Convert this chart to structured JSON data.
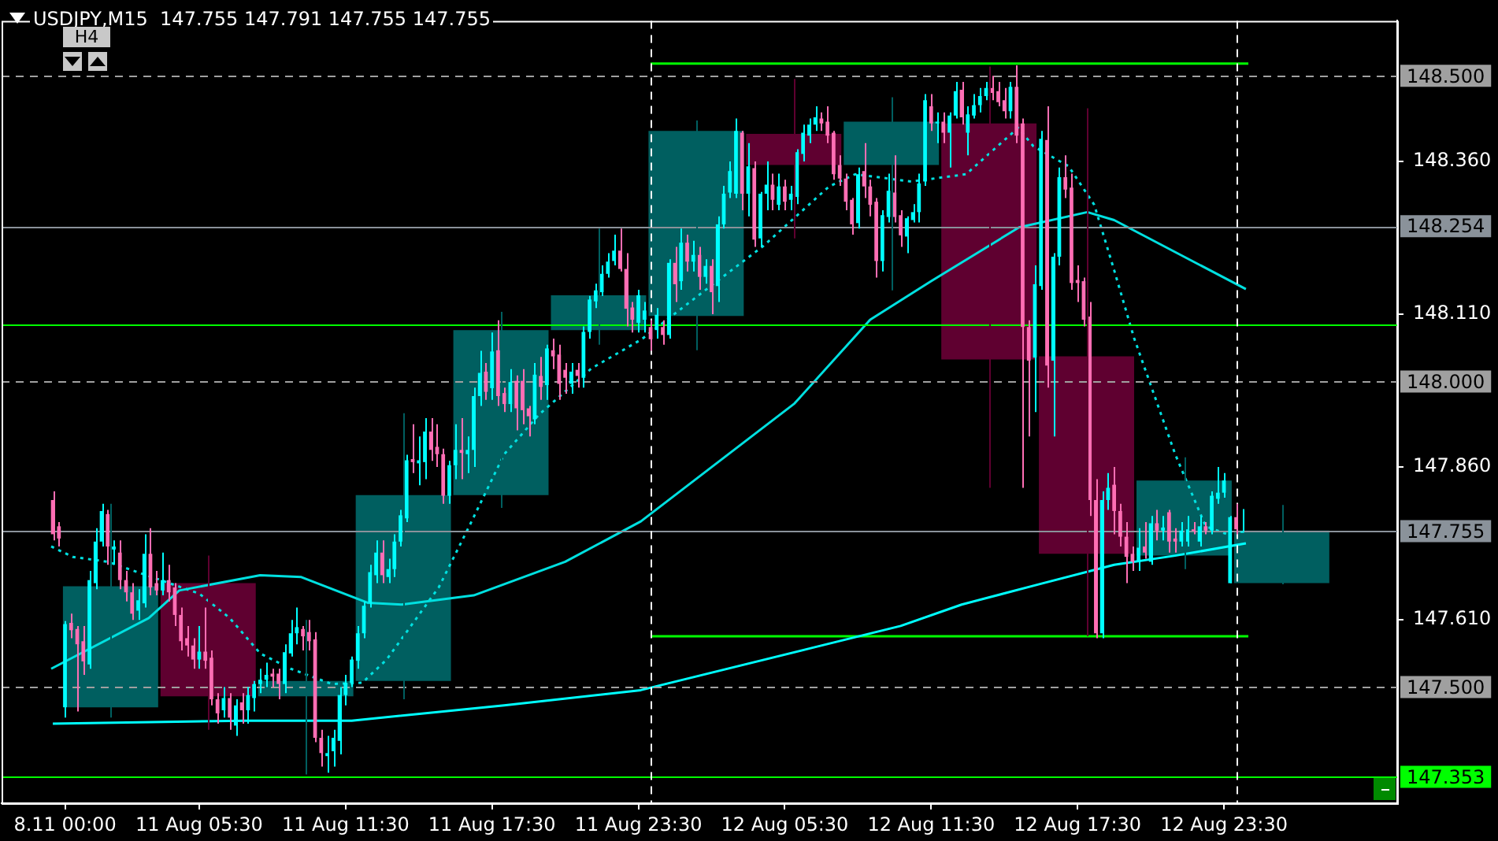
{
  "chart_data": {
    "type": "candlestick",
    "title": "USDJPY,M15  147.755 147.791 147.755 147.755",
    "annotations": [
      "H4"
    ],
    "xlim": [
      "--08-10T21:24",
      "--08-13T06:36"
    ],
    "ylim": [
      147.31,
      148.59
    ],
    "xticks": [
      {
        "value": "--08-11T00:00",
        "label": "8.11 00:00"
      },
      {
        "value": "--08-11T05:30",
        "label": "11 Aug 05:30"
      },
      {
        "value": "--08-11T11:30",
        "label": "11 Aug 11:30"
      },
      {
        "value": "--08-11T17:30",
        "label": "11 Aug 17:30"
      },
      {
        "value": "--08-11T23:30",
        "label": "11 Aug 23:30"
      },
      {
        "value": "--08-12T05:30",
        "label": "12 Aug 05:30"
      },
      {
        "value": "--08-12T11:30",
        "label": "12 Aug 11:30"
      },
      {
        "value": "--08-12T17:30",
        "label": "12 Aug 17:30"
      },
      {
        "value": "--08-12T23:30",
        "label": "12 Aug 23:30"
      }
    ],
    "yticks": [
      {
        "value": 147.61,
        "label": "147.610"
      },
      {
        "value": 147.86,
        "label": "147.860"
      },
      {
        "value": 148.11,
        "label": "148.110"
      },
      {
        "value": 148.36,
        "label": "148.360"
      }
    ],
    "ref_lines": [
      {
        "axis": "y",
        "value": 148.5,
        "label": "148.500",
        "color": "#a0a0a0",
        "line_style": "dashed"
      },
      {
        "axis": "y",
        "value": 148.254,
        "label": "148.254",
        "color": "#8a929a"
      },
      {
        "axis": "y",
        "value": 148.0,
        "label": "148.000",
        "color": "#a0a0a0",
        "line_style": "dashed"
      },
      {
        "axis": "y",
        "value": 147.755,
        "label": "147.755",
        "color": "#8a929a"
      },
      {
        "axis": "y",
        "value": 147.5,
        "label": "147.500",
        "color": "#a0a0a0",
        "line_style": "dashed"
      },
      {
        "axis": "y",
        "value": 147.353,
        "label": "147.353",
        "color": "#00ff00"
      },
      {
        "axis": "y",
        "value": 148.094,
        "color": "#00ff00"
      },
      {
        "axis": "x",
        "value": "--08-12T00:00",
        "color": "#ffffff",
        "line_style": "dashed"
      },
      {
        "axis": "x",
        "value": "--08-13T00:00",
        "color": "#ffffff",
        "line_style": "dashed"
      }
    ],
    "series": [
      {
        "color": "#005f60",
        "x": [
          "--08-11T01:52",
          "--08-11T09:52",
          "--08-11T13:52",
          "--08-11T17:52",
          "--08-11T21:52",
          "--08-12T01:52",
          "--08-12T09:52",
          "--08-12T21:52",
          "--08-13T01:52"
        ],
        "ohlc": [
          [
            147.467,
            147.8,
            147.45,
            147.665
          ],
          [
            147.485,
            147.61,
            147.357,
            147.51
          ],
          [
            147.51,
            147.948,
            147.48,
            147.814
          ],
          [
            147.814,
            148.114,
            147.793,
            148.084
          ],
          [
            148.084,
            148.25,
            148.06,
            148.141
          ],
          [
            148.107,
            148.427,
            148.051,
            148.41
          ],
          [
            148.354,
            148.465,
            148.149,
            148.425
          ],
          [
            147.715,
            147.876,
            147.693,
            147.838
          ],
          [
            147.67,
            147.798,
            147.668,
            147.756
          ]
        ]
      },
      {
        "color": "#5f0030",
        "x": [
          "--08-11T05:52",
          "--08-12T05:52",
          "--08-12T13:52",
          "--08-12T17:52"
        ],
        "ohlc": [
          [
            147.67,
            147.715,
            147.43,
            147.485
          ],
          [
            148.405,
            148.495,
            148.234,
            148.354
          ],
          [
            148.422,
            148.515,
            147.826,
            148.036
          ],
          [
            148.041,
            148.447,
            147.583,
            147.718
          ]
        ]
      },
      {
        "color": "#00ffff",
        "x": [
          "--08-11T00:00",
          "--08-11T01:00",
          "--08-11T01:15",
          "--08-11T01:30",
          "--08-11T02:00",
          "--08-11T03:00",
          "--08-11T03:15",
          "--08-11T04:00",
          "--08-11T05:30",
          "--08-11T06:30",
          "--08-11T07:00",
          "--08-11T07:30",
          "--08-11T07:45",
          "--08-11T08:00",
          "--08-11T08:15",
          "--08-11T09:00",
          "--08-11T09:15",
          "--08-11T09:30",
          "--08-11T10:45",
          "--08-11T11:00",
          "--08-11T11:15",
          "--08-11T11:30",
          "--08-11T11:45",
          "--08-11T12:00",
          "--08-11T12:15",
          "--08-11T12:30",
          "--08-11T12:45",
          "--08-11T13:15",
          "--08-11T13:30",
          "--08-11T13:45",
          "--08-11T14:00",
          "--08-11T14:30",
          "--08-11T14:45",
          "--08-11T15:45",
          "--08-11T16:00",
          "--08-11T16:30",
          "--08-11T16:45",
          "--08-11T17:00",
          "--08-11T17:30",
          "--08-11T18:15",
          "--08-11T19:15",
          "--08-11T19:45",
          "--08-11T20:45",
          "--08-11T21:15",
          "--08-11T21:30",
          "--08-11T21:45",
          "--08-11T22:00",
          "--08-11T22:15",
          "--08-11T22:30",
          "--08-11T23:30",
          "--08-11T23:45",
          "--08-12T00:15",
          "--08-12T00:45",
          "--08-12T01:15",
          "--08-12T01:45",
          "--08-12T02:15",
          "--08-12T02:45",
          "--08-12T03:00",
          "--08-12T03:15",
          "--08-12T03:30",
          "--08-12T04:00",
          "--08-12T04:30",
          "--08-12T04:45",
          "--08-12T05:15",
          "--08-12T05:45",
          "--08-12T06:00",
          "--08-12T06:15",
          "--08-12T06:30",
          "--08-12T06:45",
          "--08-12T08:30",
          "--08-12T09:30",
          "--08-12T09:45",
          "--08-12T10:30",
          "--08-12T10:45",
          "--08-12T11:00",
          "--08-12T11:15",
          "--08-12T11:45",
          "--08-12T12:15",
          "--08-12T12:30",
          "--08-12T13:00",
          "--08-12T13:15",
          "--08-12T13:30",
          "--08-12T13:45",
          "--08-12T14:45",
          "--08-12T15:45",
          "--08-12T16:00",
          "--08-12T16:30",
          "--08-12T16:45",
          "--08-12T18:30",
          "--08-12T18:45",
          "--08-12T20:00",
          "--08-12T20:30",
          "--08-12T21:00",
          "--08-12T21:45",
          "--08-12T22:00",
          "--08-12T22:30",
          "--08-12T23:00",
          "--08-12T23:15",
          "--08-12T23:30",
          "--08-12T23:45",
          "--08-13T00:15"
        ],
        "ohlc": [
          [
            147.467,
            147.608,
            147.45,
            147.603
          ],
          [
            147.537,
            147.69,
            147.53,
            147.675
          ],
          [
            147.67,
            147.76,
            147.66,
            147.738
          ],
          [
            147.738,
            147.8,
            147.73,
            147.788
          ],
          [
            147.725,
            147.74,
            147.7,
            147.73
          ],
          [
            147.625,
            147.66,
            147.61,
            147.642
          ],
          [
            147.637,
            147.75,
            147.63,
            147.718
          ],
          [
            147.658,
            147.72,
            147.65,
            147.675
          ],
          [
            147.545,
            147.6,
            147.53,
            147.558
          ],
          [
            147.462,
            147.5,
            147.45,
            147.482
          ],
          [
            147.437,
            147.48,
            147.42,
            147.47
          ],
          [
            147.462,
            147.5,
            147.44,
            147.487
          ],
          [
            147.482,
            147.51,
            147.46,
            147.505
          ],
          [
            147.505,
            147.53,
            147.49,
            147.512
          ],
          [
            147.512,
            147.54,
            147.5,
            147.52
          ],
          [
            147.505,
            147.57,
            147.49,
            147.557
          ],
          [
            147.555,
            147.61,
            147.55,
            147.588
          ],
          [
            147.588,
            147.63,
            147.57,
            147.598
          ],
          [
            147.387,
            147.42,
            147.36,
            147.392
          ],
          [
            147.395,
            147.43,
            147.37,
            147.417
          ],
          [
            147.412,
            147.5,
            147.39,
            147.487
          ],
          [
            147.487,
            147.52,
            147.47,
            147.507
          ],
          [
            147.507,
            147.55,
            147.5,
            147.545
          ],
          [
            147.543,
            147.6,
            147.53,
            147.588
          ],
          [
            147.588,
            147.64,
            147.58,
            147.633
          ],
          [
            147.638,
            147.7,
            147.63,
            147.688
          ],
          [
            147.683,
            147.74,
            147.67,
            147.72
          ],
          [
            147.68,
            147.71,
            147.67,
            147.693
          ],
          [
            147.693,
            147.75,
            147.68,
            147.738
          ],
          [
            147.738,
            147.79,
            147.73,
            147.781
          ],
          [
            147.776,
            147.88,
            147.77,
            147.871
          ],
          [
            147.866,
            147.91,
            147.83,
            147.871
          ],
          [
            147.868,
            147.94,
            147.84,
            147.918
          ],
          [
            147.813,
            147.87,
            147.8,
            147.863
          ],
          [
            147.863,
            147.93,
            147.84,
            147.888
          ],
          [
            147.881,
            147.91,
            147.85,
            147.888
          ],
          [
            147.888,
            147.99,
            147.86,
            147.976
          ],
          [
            147.976,
            148.05,
            147.96,
            148.014
          ],
          [
            147.989,
            148.08,
            147.97,
            148.049
          ],
          [
            147.963,
            148.02,
            147.95,
            147.999
          ],
          [
            147.938,
            148.03,
            147.93,
            148.011
          ],
          [
            147.994,
            148.06,
            147.97,
            148.054
          ],
          [
            147.996,
            148.03,
            147.98,
            148.016
          ],
          [
            148.006,
            148.09,
            147.99,
            148.081
          ],
          [
            148.081,
            148.14,
            148.07,
            148.134
          ],
          [
            148.131,
            148.16,
            148.12,
            148.149
          ],
          [
            148.146,
            148.19,
            148.14,
            148.176
          ],
          [
            148.176,
            148.21,
            148.17,
            148.196
          ],
          [
            148.197,
            148.24,
            148.19,
            148.214
          ],
          [
            148.096,
            148.15,
            148.08,
            148.141
          ],
          [
            148.101,
            148.13,
            148.08,
            148.116
          ],
          [
            148.084,
            148.12,
            148.07,
            148.109
          ],
          [
            148.076,
            148.2,
            148.07,
            148.194
          ],
          [
            148.164,
            148.25,
            148.15,
            148.227
          ],
          [
            148.196,
            148.23,
            148.18,
            148.207
          ],
          [
            148.171,
            148.2,
            148.16,
            148.189
          ],
          [
            148.156,
            148.27,
            148.13,
            148.257
          ],
          [
            148.257,
            148.32,
            148.25,
            148.307
          ],
          [
            148.309,
            148.36,
            148.3,
            148.344
          ],
          [
            148.307,
            148.43,
            148.3,
            148.41
          ],
          [
            148.307,
            148.39,
            148.27,
            148.352
          ],
          [
            148.234,
            148.31,
            148.22,
            148.307
          ],
          [
            148.307,
            148.36,
            148.28,
            148.322
          ],
          [
            148.289,
            148.34,
            148.28,
            148.319
          ],
          [
            148.297,
            148.32,
            148.28,
            148.307
          ],
          [
            148.302,
            148.38,
            148.29,
            148.375
          ],
          [
            148.372,
            148.42,
            148.36,
            148.407
          ],
          [
            148.402,
            148.43,
            148.39,
            148.42
          ],
          [
            148.42,
            148.45,
            148.41,
            148.432
          ],
          [
            148.259,
            148.35,
            148.25,
            148.339
          ],
          [
            148.197,
            148.28,
            148.18,
            148.272
          ],
          [
            148.269,
            148.34,
            148.26,
            148.312
          ],
          [
            148.237,
            148.27,
            148.21,
            148.267
          ],
          [
            148.264,
            148.29,
            148.26,
            148.277
          ],
          [
            148.277,
            148.34,
            148.26,
            148.324
          ],
          [
            148.327,
            148.47,
            148.32,
            148.46
          ],
          [
            148.422,
            148.44,
            148.39,
            148.425
          ],
          [
            148.407,
            148.44,
            148.35,
            148.435
          ],
          [
            148.435,
            148.49,
            148.43,
            148.475
          ],
          [
            148.407,
            148.45,
            148.37,
            148.437
          ],
          [
            148.435,
            148.47,
            148.43,
            148.452
          ],
          [
            148.452,
            148.48,
            148.44,
            148.467
          ],
          [
            148.467,
            148.49,
            148.46,
            148.48
          ],
          [
            148.442,
            148.49,
            148.43,
            148.482
          ],
          [
            148.039,
            148.19,
            147.95,
            148.159
          ],
          [
            148.156,
            148.41,
            148.15,
            148.397
          ],
          [
            148.034,
            148.21,
            147.91,
            148.204
          ],
          [
            148.204,
            148.35,
            148.19,
            148.334
          ],
          [
            147.588,
            147.82,
            147.58,
            147.806
          ],
          [
            147.806,
            147.85,
            147.79,
            147.826
          ],
          [
            147.705,
            147.76,
            147.69,
            147.728
          ],
          [
            147.705,
            147.78,
            147.7,
            147.768
          ],
          [
            147.756,
            147.78,
            147.74,
            147.761
          ],
          [
            147.738,
            147.77,
            147.73,
            147.756
          ],
          [
            147.738,
            147.78,
            147.73,
            147.758
          ],
          [
            147.738,
            147.78,
            147.73,
            147.763
          ],
          [
            147.756,
            147.82,
            147.75,
            147.813
          ],
          [
            147.808,
            147.86,
            147.8,
            147.818
          ],
          [
            147.818,
            147.85,
            147.81,
            147.838
          ],
          [
            147.67,
            147.78,
            147.67,
            147.778
          ],
          [
            147.755,
            147.791,
            147.755,
            147.755
          ]
        ]
      },
      {
        "color": "#ff6eb4",
        "x": [
          "--08-10T23:30",
          "--08-10T23:45",
          "--08-11T00:15",
          "--08-11T00:30",
          "--08-11T00:45",
          "--08-11T01:45",
          "--08-11T02:15",
          "--08-11T02:30",
          "--08-11T02:45",
          "--08-11T03:30",
          "--08-11T03:45",
          "--08-11T04:15",
          "--08-11T04:30",
          "--08-11T04:45",
          "--08-11T05:00",
          "--08-11T05:15",
          "--08-11T05:45",
          "--08-11T06:00",
          "--08-11T06:15",
          "--08-11T06:45",
          "--08-11T07:15",
          "--08-11T08:30",
          "--08-11T08:45",
          "--08-11T09:45",
          "--08-11T10:00",
          "--08-11T10:15",
          "--08-11T10:30",
          "--08-11T13:00",
          "--08-11T14:15",
          "--08-11T15:00",
          "--08-11T15:15",
          "--08-11T15:30",
          "--08-11T16:15",
          "--08-11T17:15",
          "--08-11T17:45",
          "--08-11T18:00",
          "--08-11T18:30",
          "--08-11T18:45",
          "--08-11T19:00",
          "--08-11T19:30",
          "--08-11T20:00",
          "--08-11T20:15",
          "--08-11T20:30",
          "--08-11T21:00",
          "--08-11T22:45",
          "--08-11T23:00",
          "--08-11T23:15",
          "--08-12T00:00",
          "--08-12T00:30",
          "--08-12T01:00",
          "--08-12T01:30",
          "--08-12T02:00",
          "--08-12T02:30",
          "--08-12T03:45",
          "--08-12T04:15",
          "--08-12T05:00",
          "--08-12T05:30",
          "--08-12T07:00",
          "--08-12T07:15",
          "--08-12T07:30",
          "--08-12T07:45",
          "--08-12T08:00",
          "--08-12T08:15",
          "--08-12T08:45",
          "--08-12T09:00",
          "--08-12T09:15",
          "--08-12T10:00",
          "--08-12T10:15",
          "--08-12T11:30",
          "--08-12T12:00",
          "--08-12T12:45",
          "--08-12T14:00",
          "--08-12T14:15",
          "--08-12T14:30",
          "--08-12T15:00",
          "--08-12T15:15",
          "--08-12T15:30",
          "--08-12T16:15",
          "--08-12T17:00",
          "--08-12T17:15",
          "--08-12T17:30",
          "--08-12T17:45",
          "--08-12T18:00",
          "--08-12T18:15",
          "--08-12T19:00",
          "--08-12T19:15",
          "--08-12T19:30",
          "--08-12T19:45",
          "--08-12T20:15",
          "--08-12T20:45",
          "--08-12T21:15",
          "--08-12T21:30",
          "--08-12T22:15",
          "--08-12T22:45",
          "--08-13T00:00"
        ],
        "ohlc": [
          [
            147.806,
            147.82,
            147.74,
            147.75
          ],
          [
            147.763,
            147.77,
            147.73,
            147.743
          ],
          [
            147.605,
            147.62,
            147.58,
            147.593
          ],
          [
            147.595,
            147.6,
            147.46,
            147.57
          ],
          [
            147.575,
            147.6,
            147.52,
            147.542
          ],
          [
            147.783,
            147.79,
            147.7,
            147.73
          ],
          [
            147.72,
            147.74,
            147.66,
            147.675
          ],
          [
            147.675,
            147.69,
            147.64,
            147.655
          ],
          [
            147.655,
            147.67,
            147.61,
            147.62
          ],
          [
            147.718,
            147.76,
            147.65,
            147.663
          ],
          [
            147.67,
            147.69,
            147.65,
            147.658
          ],
          [
            147.675,
            147.7,
            147.64,
            147.655
          ],
          [
            147.663,
            147.67,
            147.6,
            147.618
          ],
          [
            147.618,
            147.63,
            147.56,
            147.575
          ],
          [
            147.58,
            147.6,
            147.55,
            147.568
          ],
          [
            147.568,
            147.58,
            147.53,
            147.545
          ],
          [
            147.558,
            147.63,
            147.53,
            147.543
          ],
          [
            147.548,
            147.56,
            147.47,
            147.48
          ],
          [
            147.48,
            147.49,
            147.44,
            147.457
          ],
          [
            147.482,
            147.49,
            147.43,
            147.45
          ],
          [
            147.475,
            147.49,
            147.44,
            147.462
          ],
          [
            147.522,
            147.53,
            147.5,
            147.517
          ],
          [
            147.522,
            147.53,
            147.48,
            147.505
          ],
          [
            147.595,
            147.6,
            147.56,
            147.583
          ],
          [
            147.59,
            147.61,
            147.56,
            147.575
          ],
          [
            147.578,
            147.59,
            147.41,
            147.417
          ],
          [
            147.417,
            147.43,
            147.37,
            147.392
          ],
          [
            147.72,
            147.74,
            147.67,
            147.683
          ],
          [
            147.873,
            147.93,
            147.85,
            147.868
          ],
          [
            147.918,
            147.94,
            147.87,
            147.888
          ],
          [
            147.893,
            147.93,
            147.86,
            147.881
          ],
          [
            147.881,
            147.89,
            147.8,
            147.813
          ],
          [
            147.888,
            147.94,
            147.84,
            147.883
          ],
          [
            148.016,
            148.03,
            147.97,
            147.983
          ],
          [
            148.051,
            148.1,
            147.96,
            147.976
          ],
          [
            147.981,
            147.99,
            147.95,
            147.963
          ],
          [
            148.001,
            148.01,
            147.92,
            147.956
          ],
          [
            148.001,
            148.02,
            147.93,
            147.953
          ],
          [
            147.956,
            147.96,
            147.91,
            147.943
          ],
          [
            148.009,
            148.04,
            147.97,
            147.991
          ],
          [
            148.051,
            148.07,
            148.02,
            148.041
          ],
          [
            148.044,
            148.06,
            147.97,
            147.996
          ],
          [
            148.019,
            148.03,
            147.98,
            148.006
          ],
          [
            148.019,
            148.03,
            147.99,
            148.009
          ],
          [
            148.214,
            148.25,
            148.18,
            148.184
          ],
          [
            148.184,
            148.21,
            148.09,
            148.119
          ],
          [
            148.121,
            148.13,
            148.08,
            148.101
          ],
          [
            148.089,
            148.1,
            148.05,
            148.069
          ],
          [
            148.089,
            148.1,
            148.06,
            148.076
          ],
          [
            148.194,
            148.22,
            148.13,
            148.159
          ],
          [
            148.227,
            148.24,
            148.18,
            148.196
          ],
          [
            148.207,
            148.22,
            148.15,
            148.171
          ],
          [
            148.189,
            148.2,
            148.11,
            148.146
          ],
          [
            148.407,
            148.41,
            148.28,
            148.307
          ],
          [
            148.349,
            148.36,
            148.22,
            148.232
          ],
          [
            148.322,
            148.34,
            148.28,
            148.297
          ],
          [
            148.319,
            148.33,
            148.28,
            148.294
          ],
          [
            148.43,
            148.44,
            148.41,
            148.422
          ],
          [
            148.425,
            148.45,
            148.39,
            148.402
          ],
          [
            148.407,
            148.41,
            148.33,
            148.339
          ],
          [
            148.354,
            148.37,
            148.32,
            148.332
          ],
          [
            148.332,
            148.34,
            148.28,
            148.294
          ],
          [
            148.297,
            148.3,
            148.24,
            148.257
          ],
          [
            148.344,
            148.39,
            148.3,
            148.319
          ],
          [
            148.319,
            148.33,
            148.27,
            148.289
          ],
          [
            148.294,
            148.3,
            148.17,
            148.197
          ],
          [
            148.309,
            148.37,
            148.26,
            148.269
          ],
          [
            148.272,
            148.28,
            148.22,
            148.239
          ],
          [
            148.45,
            148.47,
            148.41,
            148.422
          ],
          [
            148.425,
            148.44,
            148.39,
            148.407
          ],
          [
            148.477,
            148.49,
            148.42,
            148.432
          ],
          [
            148.48,
            148.5,
            148.46,
            148.472
          ],
          [
            148.475,
            148.49,
            148.45,
            148.457
          ],
          [
            148.46,
            148.48,
            148.43,
            148.442
          ],
          [
            148.482,
            148.517,
            148.39,
            148.402
          ],
          [
            148.422,
            148.43,
            147.826,
            148.089
          ],
          [
            148.089,
            148.1,
            147.91,
            148.034
          ],
          [
            148.395,
            148.45,
            147.99,
            148.026
          ],
          [
            148.334,
            148.37,
            148.3,
            148.314
          ],
          [
            148.317,
            148.34,
            148.15,
            148.161
          ],
          [
            148.166,
            148.19,
            148.13,
            148.161
          ],
          [
            148.164,
            148.17,
            148.09,
            148.101
          ],
          [
            148.106,
            148.13,
            147.78,
            147.806
          ],
          [
            147.806,
            147.84,
            147.58,
            147.588
          ],
          [
            147.831,
            147.86,
            147.75,
            147.788
          ],
          [
            147.788,
            147.8,
            147.73,
            147.746
          ],
          [
            147.746,
            147.77,
            147.67,
            147.713
          ],
          [
            147.718,
            147.73,
            147.69,
            147.705
          ],
          [
            147.73,
            147.77,
            147.71,
            147.72
          ],
          [
            147.768,
            147.79,
            147.74,
            147.756
          ],
          [
            147.786,
            147.79,
            147.72,
            147.738
          ],
          [
            147.743,
            147.76,
            147.72,
            147.738
          ],
          [
            147.758,
            147.77,
            147.75,
            147.756
          ],
          [
            147.763,
            147.77,
            147.75,
            147.756
          ],
          [
            147.778,
            147.8,
            147.75,
            147.758
          ]
        ]
      },
      {
        "type": "line",
        "color": "#00ffff",
        "line_style": "solid",
        "x": [
          "--08-10T23:30",
          "--08-11T07:24",
          "--08-11T11:45",
          "--08-11T18:00",
          "--08-11T23:36",
          "--08-12T06:30",
          "--08-12T10:15",
          "--08-12T12:45",
          "--08-12T15:54",
          "--08-12T19:00",
          "--08-12T21:30",
          "--08-13T00:24"
        ],
        "values": [
          147.44,
          147.445,
          147.445,
          147.47,
          147.495,
          147.563,
          147.6,
          147.635,
          147.668,
          147.7,
          147.715,
          147.735
        ]
      },
      {
        "type": "line",
        "color": "#00e0e0",
        "line_style": "solid",
        "x": [
          "--08-10T23:26",
          "--08-11T03:26",
          "--08-11T04:41",
          "--08-11T08:00",
          "--08-11T09:41",
          "--08-11T12:24",
          "--08-11T13:48",
          "--08-11T16:45",
          "--08-11T20:30",
          "--08-11T23:36",
          "--08-12T05:54",
          "--08-12T09:00",
          "--08-12T11:30",
          "--08-12T15:06",
          "--08-12T17:54",
          "--08-12T19:00",
          "--08-13T00:24"
        ],
        "values": [
          147.53,
          147.613,
          147.658,
          147.683,
          147.68,
          147.638,
          147.635,
          147.65,
          147.705,
          147.771,
          147.964,
          148.101,
          148.164,
          148.252,
          148.277,
          148.264,
          148.151
        ]
      },
      {
        "type": "line",
        "color": "#00e0e0",
        "line_style": "dotted",
        "x": [
          "--08-10T23:26",
          "--08-11T00:19",
          "--08-11T01:45",
          "--08-11T05:30",
          "--08-11T06:45",
          "--08-11T08:00",
          "--08-11T09:15",
          "--08-11T10:56",
          "--08-11T12:11",
          "--08-11T13:11",
          "--08-11T15:19",
          "--08-11T16:34",
          "--08-11T18:00",
          "--08-11T19:26",
          "--08-11T21:34",
          "--08-11T23:38",
          "--08-12T02:08",
          "--08-12T04:38",
          "--08-12T07:19",
          "--08-12T08:23",
          "--08-12T10:41",
          "--08-12T12:56",
          "--08-12T15:04",
          "--08-12T15:41",
          "--08-12T17:08",
          "--08-12T18:11",
          "--08-12T19:00",
          "--08-12T19:49",
          "--08-12T21:30",
          "--08-12T22:45",
          "--08-12T23:38"
        ],
        "values": [
          147.73,
          147.713,
          147.705,
          147.653,
          147.613,
          147.555,
          147.53,
          147.505,
          147.507,
          147.545,
          147.663,
          147.763,
          147.881,
          147.946,
          148.021,
          148.069,
          148.146,
          148.222,
          148.319,
          148.339,
          148.327,
          148.339,
          148.415,
          148.385,
          148.352,
          148.289,
          148.182,
          148.071,
          147.881,
          147.763,
          147.75
        ]
      },
      {
        "type": "line",
        "color": "#00ff00",
        "line_style": "solid",
        "x": [
          "--08-12T00:00",
          "--08-13T00:30"
        ],
        "values": [
          148.52,
          148.52
        ]
      },
      {
        "type": "line",
        "color": "#00ff00",
        "line_style": "solid",
        "x": [
          "--08-12T00:00",
          "--08-13T00:30"
        ],
        "values": [
          147.583,
          147.583
        ]
      }
    ]
  }
}
